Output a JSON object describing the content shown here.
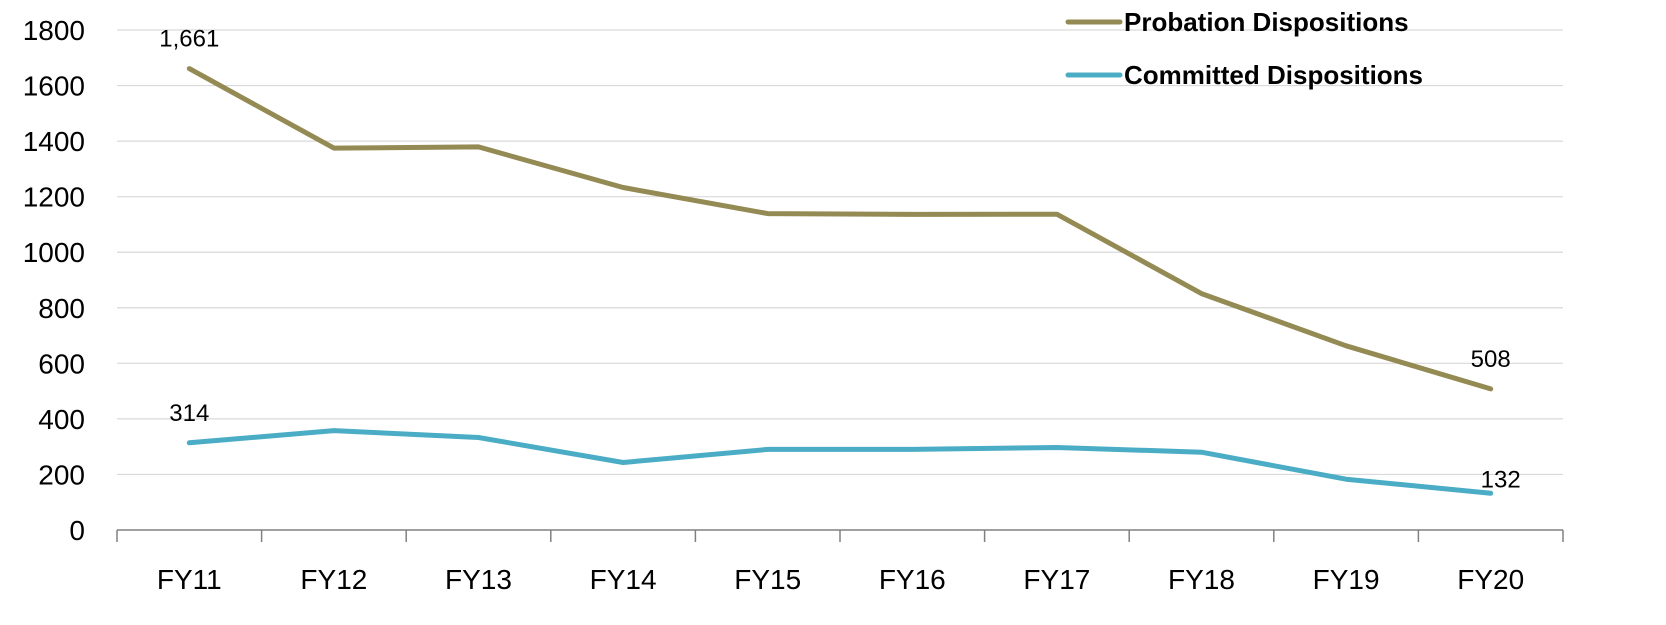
{
  "chart_data": {
    "type": "line",
    "categories": [
      "FY11",
      "FY12",
      "FY13",
      "FY14",
      "FY15",
      "FY16",
      "FY17",
      "FY18",
      "FY19",
      "FY20"
    ],
    "series": [
      {
        "name": "Probation Dispositions",
        "color": "#948A54",
        "values": [
          1661,
          1375,
          1379,
          1233,
          1139,
          1136,
          1137,
          851,
          663,
          508
        ]
      },
      {
        "name": "Committed Dispositions",
        "color": "#4BACC6",
        "values": [
          314,
          358,
          333,
          243,
          290,
          290,
          297,
          280,
          183,
          132
        ]
      }
    ],
    "data_labels": [
      {
        "series": 0,
        "index": 0,
        "text": "1,661"
      },
      {
        "series": 0,
        "index": 9,
        "text": "508"
      },
      {
        "series": 1,
        "index": 0,
        "text": "314"
      },
      {
        "series": 1,
        "index": 9,
        "text": "132"
      }
    ],
    "yticks": [
      0,
      200,
      400,
      600,
      800,
      1000,
      1200,
      1400,
      1600,
      1800
    ],
    "ylim": [
      0,
      1800
    ],
    "title": "",
    "xlabel": "",
    "ylabel": "",
    "grid": true,
    "legend_position": "top-right"
  }
}
